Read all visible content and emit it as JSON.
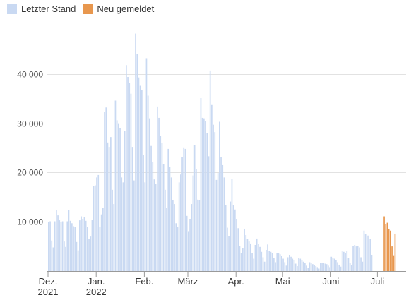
{
  "chart_data": {
    "type": "bar",
    "legend": [
      {
        "label": "Letzter Stand",
        "color": "#c9d9f2"
      },
      {
        "label": "Neu gemeldet",
        "color": "#e8974e"
      }
    ],
    "ylim": [
      0,
      50000
    ],
    "yticks": [
      {
        "value": 10000,
        "label": "10 000"
      },
      {
        "value": 20000,
        "label": "20 000"
      },
      {
        "value": 30000,
        "label": "30 000"
      },
      {
        "value": 40000,
        "label": "40 000"
      }
    ],
    "xticks": [
      {
        "day": 0,
        "lines": [
          "Dez.",
          "2021"
        ]
      },
      {
        "day": 31,
        "lines": [
          "Jan.",
          "2022"
        ]
      },
      {
        "day": 62,
        "lines": [
          "Feb."
        ]
      },
      {
        "day": 90,
        "lines": [
          "März"
        ]
      },
      {
        "day": 121,
        "lines": [
          "Apr."
        ]
      },
      {
        "day": 151,
        "lines": [
          "Mai"
        ]
      },
      {
        "day": 182,
        "lines": [
          "Juni"
        ]
      },
      {
        "day": 212,
        "lines": [
          "Juli"
        ]
      }
    ],
    "series": [
      {
        "key": "letzter_stand",
        "name": "Letzter Stand",
        "color": "#c9d9f2",
        "start_day": 0,
        "values": [
          10000,
          10100,
          6200,
          4800,
          10100,
          12400,
          11300,
          10300,
          9900,
          10100,
          6000,
          4900,
          10100,
          12400,
          10200,
          9700,
          9100,
          9000,
          5900,
          4200,
          10300,
          11100,
          10600,
          11000,
          10200,
          9000,
          6500,
          7000,
          10400,
          17200,
          17400,
          19000,
          19500,
          9000,
          11500,
          12800,
          32300,
          33200,
          26100,
          25200,
          27200,
          16500,
          13600,
          34600,
          30600,
          30000,
          29000,
          19000,
          18000,
          28500,
          41800,
          39400,
          38200,
          36000,
          25200,
          18400,
          48200,
          44000,
          39300,
          37600,
          36700,
          23500,
          18000,
          43200,
          35600,
          31000,
          25400,
          22100,
          18600,
          17700,
          33400,
          31100,
          27500,
          26000,
          21700,
          16500,
          12800,
          24800,
          21100,
          19000,
          14400,
          13600,
          9700,
          8900,
          18000,
          19600,
          23200,
          25100,
          24800,
          11200,
          8100,
          10600,
          13600,
          19400,
          25500,
          20700,
          14500,
          14400,
          35100,
          31100,
          31000,
          30500,
          28000,
          23300,
          40700,
          33700,
          29700,
          28200,
          18500,
          19900,
          30300,
          23100,
          21500,
          19000,
          13400,
          8800,
          7100,
          14100,
          18700,
          13400,
          12500,
          10600,
          8700,
          5100,
          3600,
          4600,
          8600,
          7300,
          6500,
          6000,
          5600,
          3600,
          2500,
          5300,
          6600,
          5500,
          4900,
          3900,
          2800,
          1900,
          4300,
          5400,
          4100,
          3900,
          3700,
          2700,
          1800,
          3600,
          3700,
          3400,
          3100,
          2500,
          1800,
          1100,
          2800,
          3300,
          2900,
          2500,
          2200,
          1500,
          1000,
          2600,
          2500,
          2200,
          1900,
          1600,
          1100,
          700,
          1800,
          1700,
          1400,
          1200,
          1000,
          800,
          500,
          1700,
          1700,
          1600,
          1500,
          1400,
          1100,
          800,
          2900,
          2700,
          2500,
          2200,
          1800,
          1300,
          900,
          4000,
          3900,
          3700,
          4100,
          2700,
          1700,
          1200,
          5100,
          5300,
          5000,
          5100,
          4800,
          2800,
          1900,
          8200,
          7500,
          7200,
          7200,
          6500,
          3300
        ]
      },
      {
        "key": "neu_gemeldet",
        "name": "Neu gemeldet",
        "color": "#e8974e",
        "start_day": 216,
        "values": [
          11100,
          9500,
          9800,
          8600,
          8200,
          5000,
          3200,
          7600
        ]
      }
    ]
  }
}
